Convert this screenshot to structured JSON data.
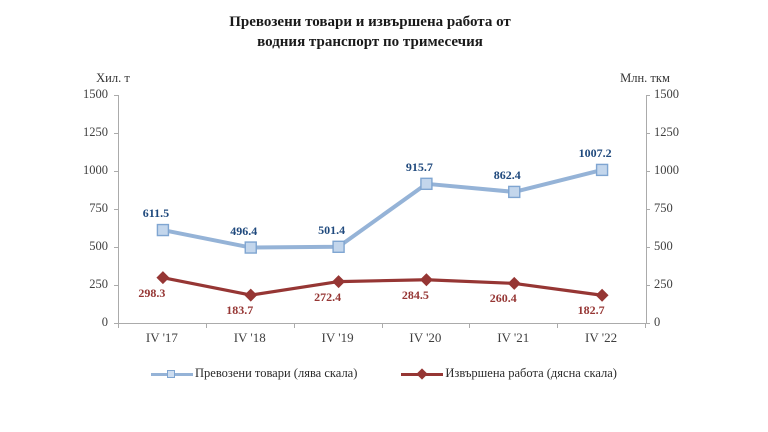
{
  "header": {
    "title_lines": [
      "Превозени товари и извършена работа от",
      "водния транспорт по тримесечия"
    ]
  },
  "chart_data": {
    "type": "line",
    "title": "Превозени товари и извършена работа от водния транспорт по тримесечия",
    "categories": [
      "IV '17",
      "IV '18",
      "IV '19",
      "IV '20",
      "IV '21",
      "IV '22"
    ],
    "series": [
      {
        "name": "Превозени товари (лява скала)",
        "axis": "left",
        "values": [
          611.5,
          496.4,
          501.4,
          915.7,
          862.4,
          1007.2
        ],
        "color": "#95b3d7",
        "marker": "square",
        "marker_fill": "#c3d6ec",
        "marker_stroke": "#7fa5d1",
        "label_color": "#1f497d"
      },
      {
        "name": "Извършена работа (дясна скала)",
        "axis": "right",
        "values": [
          298.3,
          183.7,
          272.4,
          284.5,
          260.4,
          182.7
        ],
        "color": "#963634",
        "marker": "diamond",
        "marker_fill": "#963634",
        "marker_stroke": "#963634",
        "label_color": "#963634"
      }
    ],
    "left_axis": {
      "label": "Хил. т",
      "min": 0,
      "max": 1500,
      "step": 250
    },
    "right_axis": {
      "label": "Млн. ткм",
      "min": 0,
      "max": 1500,
      "step": 250
    },
    "tick_values": [
      1500,
      1250,
      1000,
      750,
      500,
      250,
      0
    ],
    "grid": false,
    "legend_position": "bottom",
    "axis_line_color": "#ababab"
  }
}
